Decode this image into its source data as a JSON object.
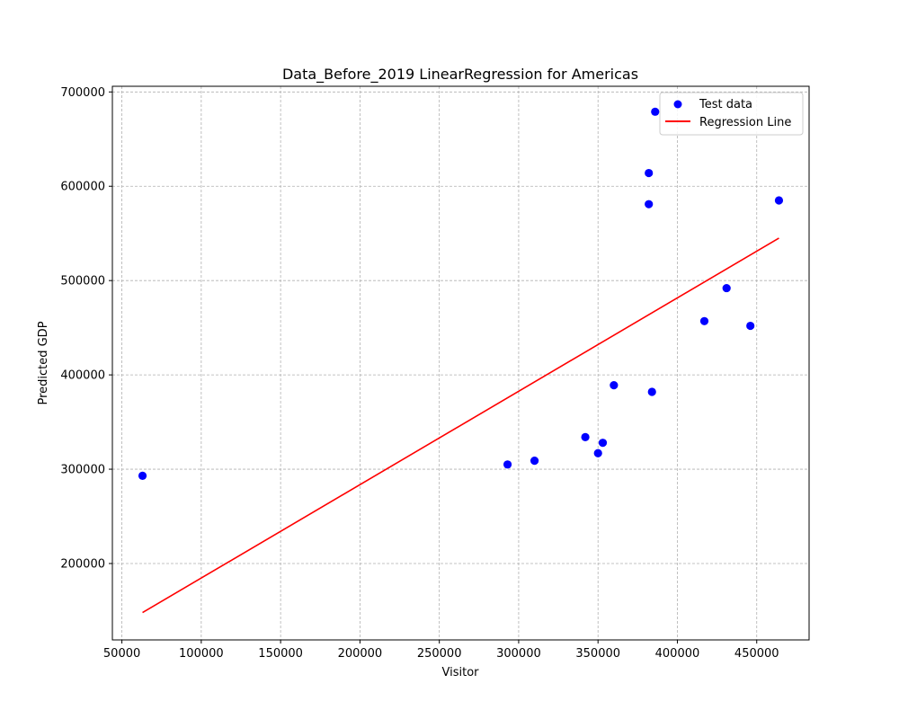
{
  "chart_data": {
    "type": "scatter",
    "title": "Data_Before_2019 LinearRegression for Americas",
    "xlabel": "Visitor",
    "ylabel": "Predicted GDP",
    "xlim": [
      44000,
      483000
    ],
    "ylim": [
      119000,
      706000
    ],
    "x_ticks": [
      50000,
      100000,
      150000,
      200000,
      250000,
      300000,
      350000,
      400000,
      450000
    ],
    "y_ticks": [
      200000,
      300000,
      400000,
      500000,
      600000,
      700000
    ],
    "grid": true,
    "legend_position": "upper-right",
    "series": [
      {
        "name": "Test data",
        "kind": "scatter",
        "color": "#0000ff",
        "points": [
          [
            63000,
            293000
          ],
          [
            293000,
            305000
          ],
          [
            310000,
            309000
          ],
          [
            342000,
            334000
          ],
          [
            350000,
            317000
          ],
          [
            353000,
            328000
          ],
          [
            360000,
            389000
          ],
          [
            382000,
            614000
          ],
          [
            382000,
            581000
          ],
          [
            384000,
            382000
          ],
          [
            386000,
            679000
          ],
          [
            417000,
            457000
          ],
          [
            431000,
            492000
          ],
          [
            446000,
            452000
          ],
          [
            464000,
            585000
          ]
        ]
      },
      {
        "name": "Regression Line",
        "kind": "line",
        "color": "#ff0000",
        "points": [
          [
            63000,
            148000
          ],
          [
            464000,
            545000
          ]
        ]
      }
    ]
  }
}
